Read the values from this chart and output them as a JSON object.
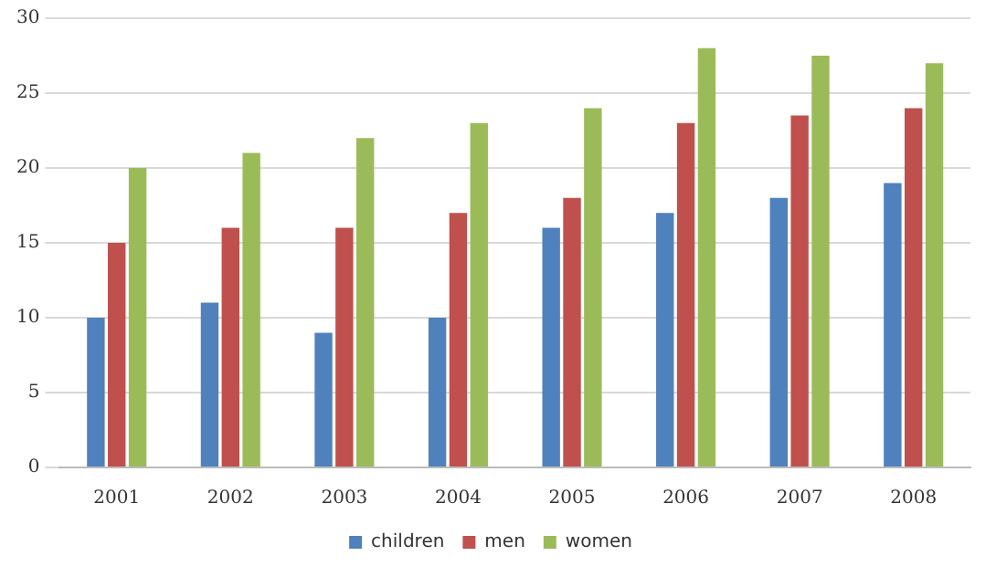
{
  "chart_data": {
    "type": "bar",
    "categories": [
      "2001",
      "2002",
      "2003",
      "2004",
      "2005",
      "2006",
      "2007",
      "2008"
    ],
    "series": [
      {
        "name": "children",
        "color": "#4f81bd",
        "values": [
          10,
          11,
          9,
          10,
          16,
          17,
          18,
          19
        ]
      },
      {
        "name": "men",
        "color": "#c0504d",
        "values": [
          15,
          16,
          16,
          17,
          18,
          23,
          23.5,
          24
        ]
      },
      {
        "name": "women",
        "color": "#9bbb59",
        "values": [
          20,
          21,
          22,
          23,
          24,
          28,
          27.5,
          27
        ]
      }
    ],
    "ylim": [
      0,
      30
    ],
    "yticks": [
      0,
      5,
      10,
      15,
      20,
      25,
      30
    ],
    "grid": "y",
    "legend": "bottom"
  }
}
